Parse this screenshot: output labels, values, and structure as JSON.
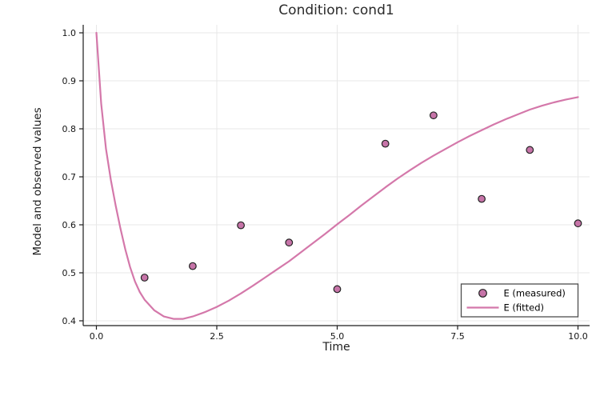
{
  "chart_data": {
    "type": "line+scatter",
    "title": "Condition: cond1",
    "xlabel": "Time",
    "ylabel": "Model and observed values",
    "xlim": [
      -0.274,
      10.241
    ],
    "ylim": [
      0.39,
      1.0167
    ],
    "x_ticks": [
      "0.0",
      "2.5",
      "5.0",
      "7.5",
      "10.0"
    ],
    "y_ticks": [
      "0.4",
      "0.5",
      "0.6",
      "0.7",
      "0.8",
      "0.9",
      "1.0"
    ],
    "grid": true,
    "legend_position": "bottom-right",
    "colors": {
      "line": "#d478aa",
      "marker_fill": "#c674a8",
      "marker_edge": "#222222",
      "grid": "#e7e7e7",
      "spine": "#1c1c1c",
      "tick_text": "#151515",
      "legend_border": "#4d4d4d",
      "legend_bg": "#ffffff"
    },
    "series": [
      {
        "name": "E (measured)",
        "type": "scatter",
        "marker": "circle",
        "x": [
          1,
          2,
          3,
          4,
          5,
          6,
          7,
          8,
          9,
          10
        ],
        "y": [
          0.49,
          0.514,
          0.599,
          0.563,
          0.466,
          0.769,
          0.828,
          0.654,
          0.756,
          0.603
        ]
      },
      {
        "name": "E (fitted)",
        "type": "line",
        "x": [
          0,
          0.1,
          0.2,
          0.3,
          0.4,
          0.5,
          0.6,
          0.7,
          0.8,
          0.9,
          1.0,
          1.2,
          1.4,
          1.6,
          1.8,
          2.0,
          2.25,
          2.5,
          2.75,
          3.0,
          3.25,
          3.5,
          3.75,
          4.0,
          4.25,
          4.5,
          4.75,
          5.0,
          5.25,
          5.5,
          5.75,
          6.0,
          6.25,
          6.5,
          6.75,
          7.0,
          7.25,
          7.5,
          7.75,
          8.0,
          8.25,
          8.5,
          8.75,
          9.0,
          9.25,
          9.5,
          9.75,
          10.0
        ],
        "y": [
          1.0,
          0.852,
          0.758,
          0.693,
          0.64,
          0.592,
          0.549,
          0.512,
          0.482,
          0.46,
          0.444,
          0.422,
          0.409,
          0.404,
          0.404,
          0.409,
          0.418,
          0.429,
          0.442,
          0.457,
          0.473,
          0.49,
          0.507,
          0.524,
          0.543,
          0.562,
          0.581,
          0.601,
          0.62,
          0.64,
          0.659,
          0.678,
          0.696,
          0.713,
          0.729,
          0.744,
          0.758,
          0.772,
          0.785,
          0.797,
          0.809,
          0.82,
          0.83,
          0.84,
          0.848,
          0.855,
          0.861,
          0.866
        ]
      }
    ]
  }
}
